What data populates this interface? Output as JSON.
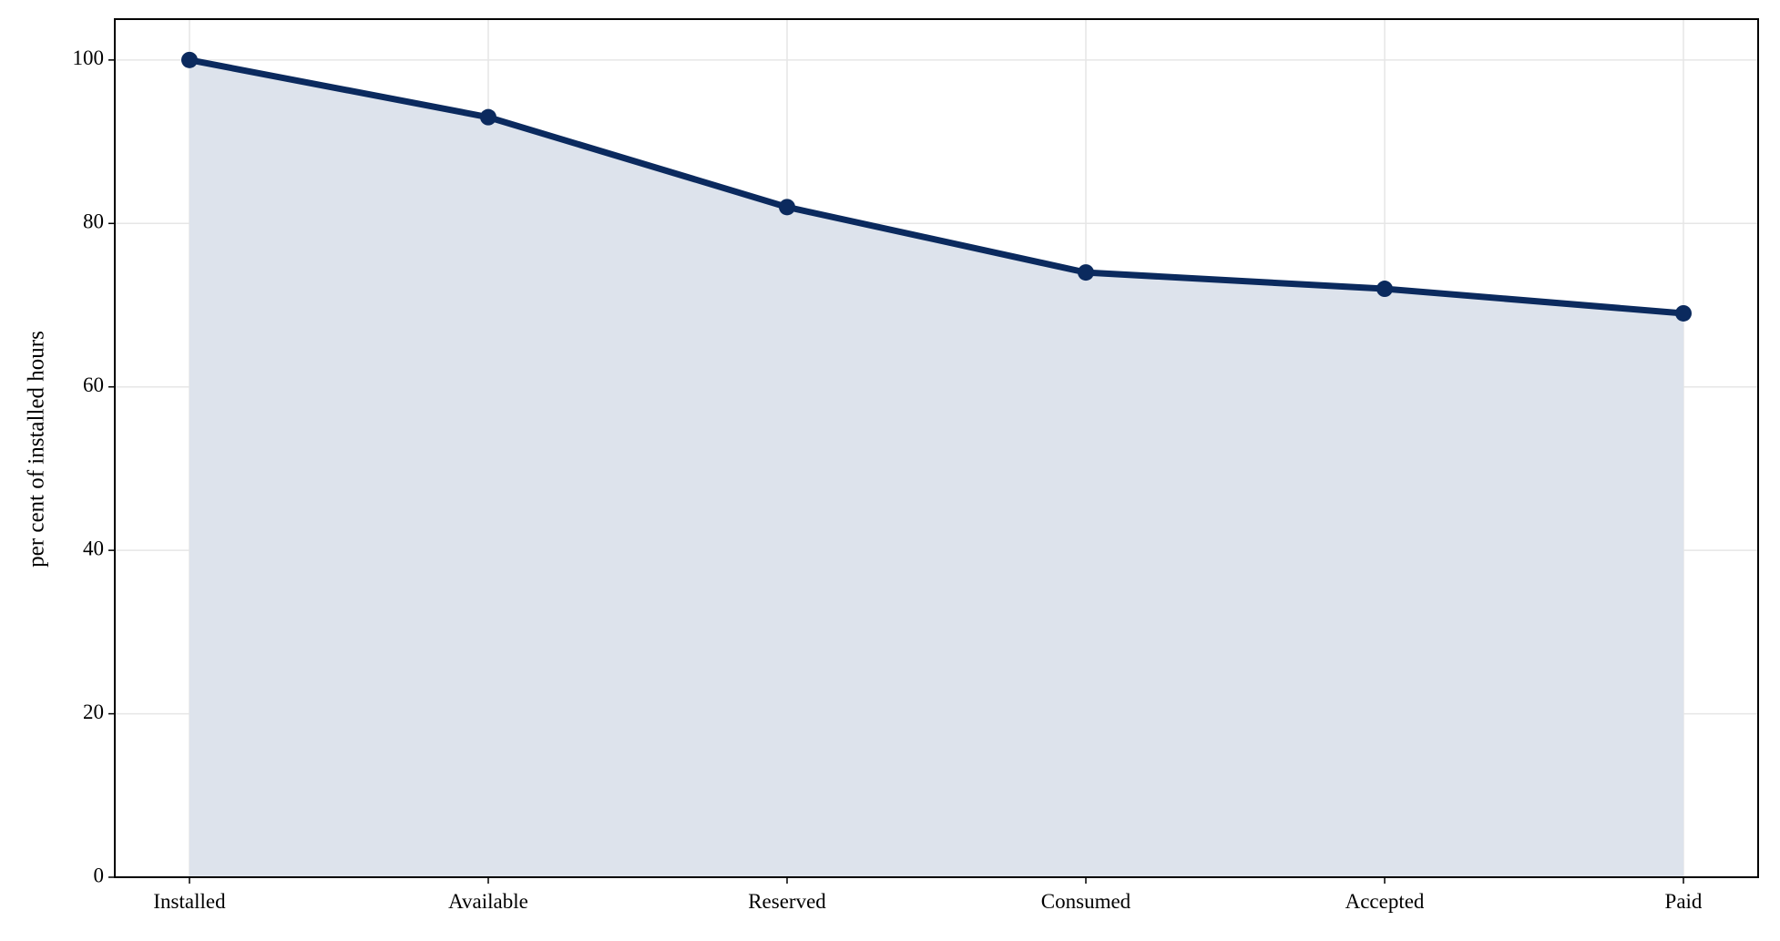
{
  "chart_data": {
    "type": "line",
    "fill_area": true,
    "y_label": "per cent of installed hours",
    "categories": [
      "Installed",
      "Available",
      "Reserved",
      "Consumed",
      "Accepted",
      "Paid"
    ],
    "series": [
      {
        "name": "per cent of installed hours",
        "color": "#0b2a5e",
        "fill": "#dde3ec",
        "values": [
          100,
          93,
          82,
          74,
          72,
          69
        ]
      }
    ],
    "ylim": [
      0,
      105
    ],
    "yticks": [
      0,
      20,
      40,
      60,
      80,
      100
    ],
    "grid": true
  }
}
